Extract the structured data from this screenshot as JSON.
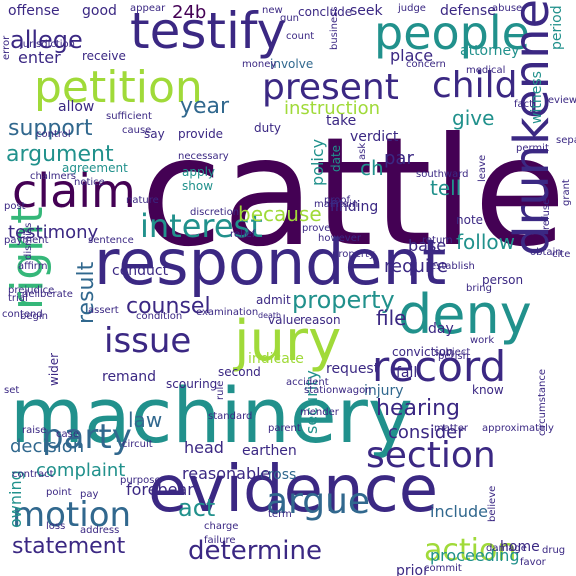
{
  "palette": {
    "dark_purple": "#440154",
    "indigo": "#3b2883",
    "blue": "#31688e",
    "teal": "#21918c",
    "green": "#35b779",
    "lime": "#a0da39",
    "yellow": "#d5e21a",
    "grey": "#9a9ab0"
  },
  "words": [
    {
      "text": "cattle",
      "color": "dark_purple"
    },
    {
      "text": "machinery",
      "color": "teal"
    },
    {
      "text": "evidence",
      "color": "indigo"
    },
    {
      "text": "respondent",
      "color": "indigo"
    },
    {
      "text": "testify",
      "color": "indigo"
    },
    {
      "text": "petition",
      "color": "lime"
    },
    {
      "text": "people",
      "color": "teal"
    },
    {
      "text": "jury",
      "color": "lime"
    },
    {
      "text": "drunkenness",
      "color": "indigo"
    },
    {
      "text": "deny",
      "color": "teal"
    },
    {
      "text": "claim",
      "color": "dark_purple"
    },
    {
      "text": "record",
      "color": "indigo"
    },
    {
      "text": "present",
      "color": "indigo"
    },
    {
      "text": "child",
      "color": "indigo"
    },
    {
      "text": "argue",
      "color": "blue"
    },
    {
      "text": "party",
      "color": "blue"
    },
    {
      "text": "motion",
      "color": "blue"
    },
    {
      "text": "interest",
      "color": "teal"
    },
    {
      "text": "issue",
      "color": "indigo"
    },
    {
      "text": "right",
      "color": "green"
    },
    {
      "text": "section",
      "color": "indigo"
    },
    {
      "text": "allege",
      "color": "indigo"
    },
    {
      "text": "property",
      "color": "teal"
    },
    {
      "text": "determine",
      "color": "indigo"
    },
    {
      "text": "action",
      "color": "lime"
    },
    {
      "text": "statement",
      "color": "indigo"
    },
    {
      "text": "counsel",
      "color": "indigo"
    },
    {
      "text": "hearing",
      "color": "indigo"
    },
    {
      "text": "because",
      "color": "lime"
    },
    {
      "text": "support",
      "color": "blue"
    },
    {
      "text": "argument",
      "color": "teal"
    },
    {
      "text": "testimony",
      "color": "indigo"
    },
    {
      "text": "law",
      "color": "blue"
    },
    {
      "text": "year",
      "color": "blue"
    },
    {
      "text": "enter",
      "color": "indigo"
    },
    {
      "text": "file",
      "color": "indigo"
    },
    {
      "text": "instruction",
      "color": "lime"
    },
    {
      "text": "par",
      "color": "indigo"
    },
    {
      "text": "give",
      "color": "teal"
    },
    {
      "text": "follow",
      "color": "teal"
    },
    {
      "text": "result",
      "color": "blue"
    },
    {
      "text": "decision",
      "color": "blue"
    },
    {
      "text": "complaint",
      "color": "teal"
    },
    {
      "text": "consider",
      "color": "indigo"
    },
    {
      "text": "require",
      "color": "indigo"
    },
    {
      "text": "base",
      "color": "indigo"
    },
    {
      "text": "act",
      "color": "teal"
    },
    {
      "text": "24b",
      "color": "dark_purple"
    },
    {
      "text": "ch",
      "color": "teal"
    },
    {
      "text": "tell",
      "color": "teal"
    },
    {
      "text": "conduct",
      "color": "indigo"
    },
    {
      "text": "policy",
      "color": "teal"
    },
    {
      "text": "note",
      "color": "indigo"
    },
    {
      "text": "injury",
      "color": "blue"
    },
    {
      "text": "head",
      "color": "indigo"
    },
    {
      "text": "earthen",
      "color": "indigo"
    },
    {
      "text": "cross",
      "color": "blue"
    },
    {
      "text": "security",
      "color": "teal"
    },
    {
      "text": "include",
      "color": "blue"
    },
    {
      "text": "proceeding",
      "color": "teal"
    },
    {
      "text": "prior",
      "color": "indigo"
    },
    {
      "text": "home",
      "color": "indigo"
    },
    {
      "text": "owning",
      "color": "teal"
    },
    {
      "text": "indicate",
      "color": "lime"
    },
    {
      "text": "request",
      "color": "indigo"
    },
    {
      "text": "finding",
      "color": "indigo"
    },
    {
      "text": "person",
      "color": "indigo"
    },
    {
      "text": "day",
      "color": "indigo"
    },
    {
      "text": "take",
      "color": "indigo"
    },
    {
      "text": "seek",
      "color": "indigo"
    },
    {
      "text": "place",
      "color": "indigo"
    },
    {
      "text": "attorney",
      "color": "teal"
    },
    {
      "text": "period",
      "color": "teal"
    },
    {
      "text": "offense",
      "color": "indigo"
    },
    {
      "text": "good",
      "color": "indigo"
    },
    {
      "text": "defense",
      "color": "indigo"
    },
    {
      "text": "conclude",
      "color": "indigo"
    },
    {
      "text": "new",
      "color": "indigo"
    },
    {
      "text": "receive",
      "color": "indigo"
    },
    {
      "text": "involve",
      "color": "blue"
    },
    {
      "text": "provide",
      "color": "indigo"
    },
    {
      "text": "duty",
      "color": "indigo"
    },
    {
      "text": "verdict",
      "color": "indigo"
    },
    {
      "text": "say",
      "color": "indigo"
    },
    {
      "text": "allow",
      "color": "indigo"
    },
    {
      "text": "witness",
      "color": "teal"
    },
    {
      "text": "agreement",
      "color": "teal"
    },
    {
      "text": "apply",
      "color": "teal"
    },
    {
      "text": "show",
      "color": "teal"
    },
    {
      "text": "date",
      "color": "teal"
    },
    {
      "text": "ask",
      "color": "indigo"
    },
    {
      "text": "admit",
      "color": "indigo"
    },
    {
      "text": "fail",
      "color": "indigo"
    },
    {
      "text": "know",
      "color": "indigo"
    },
    {
      "text": "value",
      "color": "indigo"
    },
    {
      "text": "reason",
      "color": "indigo"
    },
    {
      "text": "second",
      "color": "indigo"
    },
    {
      "text": "remand",
      "color": "indigo"
    },
    {
      "text": "wider",
      "color": "indigo"
    },
    {
      "text": "accident",
      "color": "indigo"
    },
    {
      "text": "conviction",
      "color": "indigo"
    },
    {
      "text": "establish",
      "color": "indigo"
    },
    {
      "text": "stationwagon",
      "color": "indigo"
    },
    {
      "text": "scouring",
      "color": "indigo"
    },
    {
      "text": "rule",
      "color": "indigo"
    },
    {
      "text": "examination",
      "color": "indigo"
    },
    {
      "text": "condition",
      "color": "indigo"
    },
    {
      "text": "death",
      "color": "indigo"
    },
    {
      "text": "standard",
      "color": "indigo"
    },
    {
      "text": "parent",
      "color": "indigo"
    },
    {
      "text": "matter",
      "color": "indigo"
    },
    {
      "text": "forebear",
      "color": "indigo"
    },
    {
      "text": "term",
      "color": "indigo"
    },
    {
      "text": "charge",
      "color": "indigo"
    },
    {
      "text": "failure",
      "color": "indigo"
    },
    {
      "text": "damage",
      "color": "indigo"
    },
    {
      "text": "drug",
      "color": "indigo"
    },
    {
      "text": "favor",
      "color": "indigo"
    },
    {
      "text": "commit",
      "color": "indigo"
    },
    {
      "text": "reasonable",
      "color": "indigo"
    },
    {
      "text": "discretion",
      "color": "indigo"
    },
    {
      "text": "relief",
      "color": "indigo"
    },
    {
      "text": "necessary",
      "color": "indigo"
    },
    {
      "text": "notice",
      "color": "indigo"
    },
    {
      "text": "raise",
      "color": "indigo"
    },
    {
      "text": "contract",
      "color": "indigo"
    },
    {
      "text": "purpose",
      "color": "indigo"
    },
    {
      "text": "circuit",
      "color": "indigo"
    },
    {
      "text": "pay",
      "color": "indigo"
    },
    {
      "text": "believe",
      "color": "indigo"
    },
    {
      "text": "circumstance",
      "color": "indigo"
    },
    {
      "text": "judge",
      "color": "indigo"
    },
    {
      "text": "abuse",
      "color": "indigo"
    },
    {
      "text": "appear",
      "color": "indigo"
    },
    {
      "text": "sentence",
      "color": "indigo"
    },
    {
      "text": "dismiss",
      "color": "indigo"
    },
    {
      "text": "affirm",
      "color": "indigo"
    },
    {
      "text": "contend",
      "color": "indigo"
    },
    {
      "text": "subject",
      "color": "indigo"
    },
    {
      "text": "perish",
      "color": "indigo"
    },
    {
      "text": "review",
      "color": "indigo"
    },
    {
      "text": "medical",
      "color": "indigo"
    },
    {
      "text": "cause",
      "color": "indigo"
    },
    {
      "text": "concern",
      "color": "indigo"
    },
    {
      "text": "money",
      "color": "indigo"
    },
    {
      "text": "error",
      "color": "indigo"
    },
    {
      "text": "jurisdiction",
      "color": "indigo"
    },
    {
      "text": "chalmers",
      "color": "indigo"
    },
    {
      "text": "leave",
      "color": "indigo"
    },
    {
      "text": "southward",
      "color": "indigo"
    },
    {
      "text": "business",
      "color": "indigo"
    },
    {
      "text": "count",
      "color": "indigo"
    },
    {
      "text": "gun",
      "color": "indigo"
    },
    {
      "text": "proof",
      "color": "indigo"
    },
    {
      "text": "obtain",
      "color": "indigo"
    },
    {
      "text": "return",
      "color": "indigo"
    },
    {
      "text": "payment",
      "color": "indigo"
    },
    {
      "text": "sufficient",
      "color": "indigo"
    },
    {
      "text": "however",
      "color": "indigo"
    },
    {
      "text": "prove",
      "color": "indigo"
    },
    {
      "text": "work",
      "color": "indigo"
    },
    {
      "text": "mender",
      "color": "indigo"
    },
    {
      "text": "bring",
      "color": "indigo"
    },
    {
      "text": "point",
      "color": "indigo"
    },
    {
      "text": "address",
      "color": "indigo"
    },
    {
      "text": "set",
      "color": "indigo"
    },
    {
      "text": "loss",
      "color": "indigo"
    },
    {
      "text": "approximately",
      "color": "indigo"
    },
    {
      "text": "property",
      "color": "indigo"
    },
    {
      "text": "fact",
      "color": "indigo"
    },
    {
      "text": "refuse",
      "color": "indigo"
    },
    {
      "text": "grant",
      "color": "indigo"
    },
    {
      "text": "permit",
      "color": "indigo"
    },
    {
      "text": "begin",
      "color": "indigo"
    },
    {
      "text": "control",
      "color": "indigo"
    },
    {
      "text": "case",
      "color": "indigo"
    },
    {
      "text": "prejudice",
      "color": "indigo"
    },
    {
      "text": "trial",
      "color": "indigo"
    },
    {
      "text": "post",
      "color": "indigo"
    },
    {
      "text": "maintain",
      "color": "indigo"
    },
    {
      "text": "deliberate",
      "color": "indigo"
    },
    {
      "text": "separate",
      "color": "indigo"
    },
    {
      "text": "assert",
      "color": "indigo"
    },
    {
      "text": "nature",
      "color": "indigo"
    },
    {
      "text": "cite",
      "color": "indigo"
    },
    {
      "text": "find",
      "color": "indigo"
    },
    {
      "text": "relevant",
      "color": "indigo"
    }
  ]
}
